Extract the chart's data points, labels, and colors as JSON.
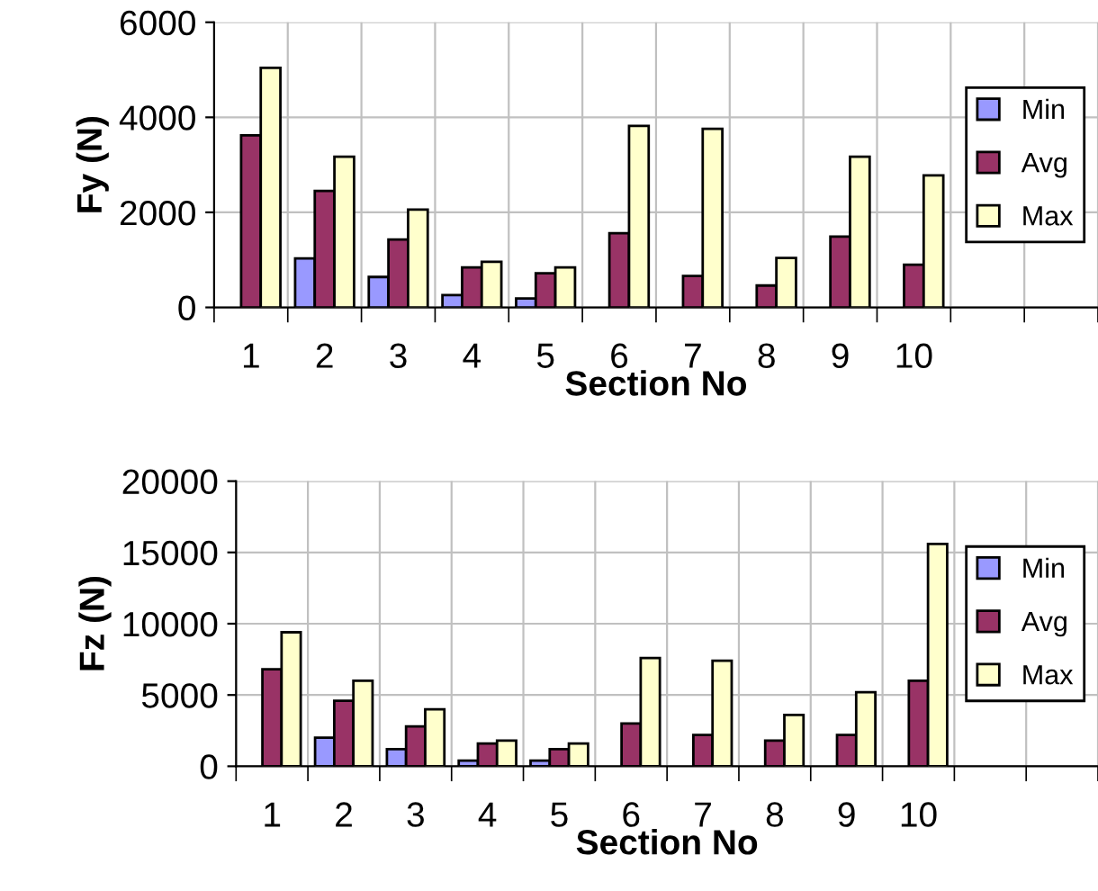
{
  "chart_data": [
    {
      "type": "bar",
      "xlabel": "Section No",
      "ylabel": "Fy (N)",
      "categories": [
        "1",
        "2",
        "3",
        "4",
        "5",
        "6",
        "7",
        "8",
        "9",
        "10",
        null,
        null
      ],
      "ylim": [
        0,
        6000
      ],
      "yticks": [
        0,
        2000,
        4000,
        6000
      ],
      "grid": true,
      "legend": "right",
      "series": [
        {
          "name": "Min",
          "color": "#9999ff",
          "values": [
            null,
            1030,
            640,
            260,
            190,
            null,
            null,
            null,
            null,
            null,
            null,
            null
          ]
        },
        {
          "name": "Avg",
          "color": "#993366",
          "values": [
            3620,
            2450,
            1430,
            840,
            720,
            1560,
            660,
            460,
            1490,
            900,
            null,
            null
          ]
        },
        {
          "name": "Max",
          "color": "#ffffcc",
          "values": [
            5040,
            3170,
            2060,
            960,
            840,
            3820,
            3760,
            1040,
            3170,
            2780,
            null,
            null
          ]
        }
      ]
    },
    {
      "type": "bar",
      "xlabel": "Section No",
      "ylabel": "Fz (N)",
      "categories": [
        "1",
        "2",
        "3",
        "4",
        "5",
        "6",
        "7",
        "8",
        "9",
        "10",
        null,
        null
      ],
      "ylim": [
        0,
        20000
      ],
      "yticks": [
        0,
        5000,
        10000,
        15000,
        20000
      ],
      "grid": true,
      "legend": "right",
      "series": [
        {
          "name": "Min",
          "color": "#9999ff",
          "values": [
            null,
            2000,
            1200,
            400,
            400,
            null,
            null,
            null,
            null,
            null,
            null,
            null
          ]
        },
        {
          "name": "Avg",
          "color": "#993366",
          "values": [
            6800,
            4600,
            2800,
            1600,
            1200,
            3000,
            2200,
            1800,
            2200,
            6000,
            null,
            null
          ]
        },
        {
          "name": "Max",
          "color": "#ffffcc",
          "values": [
            9400,
            6000,
            4000,
            1800,
            1600,
            7600,
            7400,
            3600,
            5200,
            15600,
            null,
            null
          ]
        }
      ]
    }
  ]
}
